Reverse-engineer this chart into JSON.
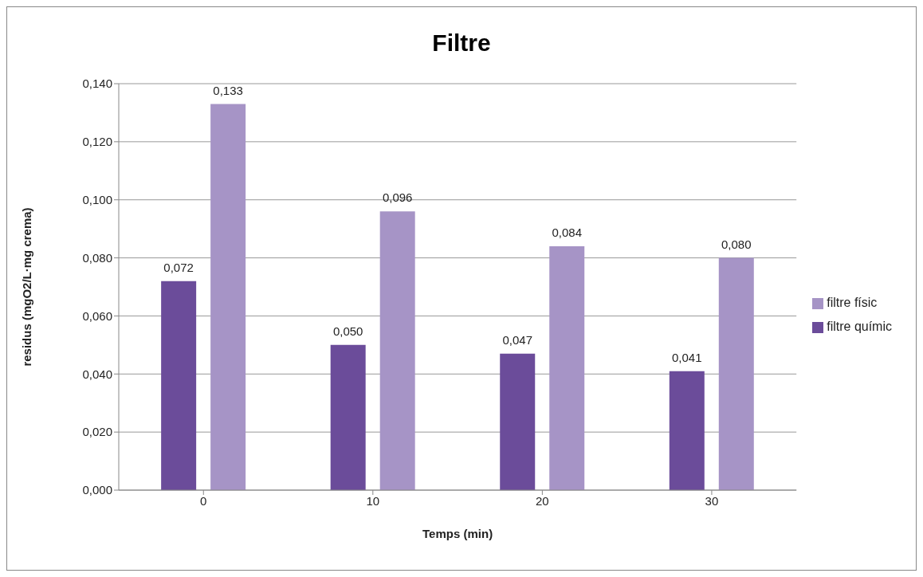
{
  "chart_data": {
    "type": "bar",
    "title": "Filtre",
    "xlabel": "Temps (min)",
    "ylabel": "residus (mgO2/L·mg crema)",
    "categories": [
      "0",
      "10",
      "20",
      "30"
    ],
    "series": [
      {
        "name": "filtre químic",
        "color": "#6b4c9a",
        "values": [
          0.072,
          0.05,
          0.047,
          0.041
        ],
        "value_labels": [
          "0,072",
          "0,050",
          "0,047",
          "0,041"
        ]
      },
      {
        "name": "filtre físic",
        "color": "#a694c6",
        "values": [
          0.133,
          0.096,
          0.084,
          0.08
        ],
        "value_labels": [
          "0,133",
          "0,096",
          "0,084",
          "0,080"
        ]
      }
    ],
    "ylim": [
      0,
      0.14
    ],
    "yticks": [
      {
        "value": 0,
        "label": "0,000"
      },
      {
        "value": 0.02,
        "label": "0,020"
      },
      {
        "value": 0.04,
        "label": "0,040"
      },
      {
        "value": 0.06,
        "label": "0,060"
      },
      {
        "value": 0.08,
        "label": "0,080"
      },
      {
        "value": 0.1,
        "label": "0,100"
      },
      {
        "value": 0.12,
        "label": "0,120"
      },
      {
        "value": 0.14,
        "label": "0,140"
      }
    ],
    "grid": "y",
    "legend": "right"
  }
}
